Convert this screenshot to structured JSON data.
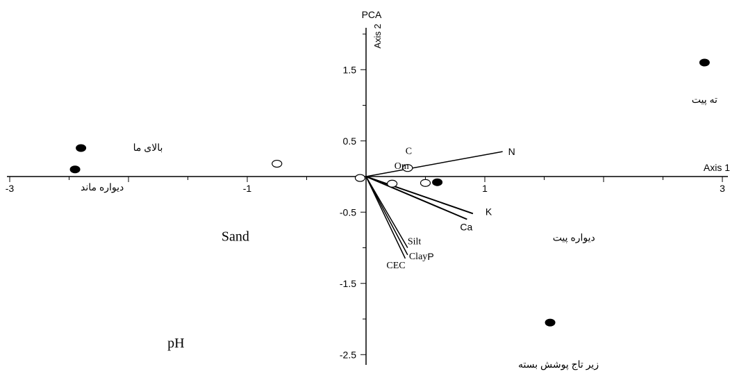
{
  "chart_data": {
    "type": "scatter",
    "title": "PCA",
    "xlabel": "Axis 1",
    "ylabel": "Axis 2",
    "xlim": [
      -3.1,
      3.1
    ],
    "ylim": [
      -2.6,
      2.1
    ],
    "x_ticks": [
      {
        "value": -3,
        "label": "-3"
      },
      {
        "value": -1,
        "label": "-1"
      },
      {
        "value": 1,
        "label": "1"
      },
      {
        "value": 3,
        "label": "3"
      }
    ],
    "y_ticks": [
      {
        "value": 1.5,
        "label": "1.5"
      },
      {
        "value": 0.5,
        "label": "0.5"
      },
      {
        "value": -0.5,
        "label": "-0.5"
      },
      {
        "value": -1.5,
        "label": "-1.5"
      },
      {
        "value": -2.5,
        "label": "-2.5"
      }
    ],
    "site_points": [
      {
        "x": 2.85,
        "y": 1.6,
        "label": "ته پیت"
      },
      {
        "x": -2.4,
        "y": 0.4,
        "label": "بالای ما"
      },
      {
        "x": -2.45,
        "y": 0.1,
        "label": "دیواره ماند"
      },
      {
        "x": 1.55,
        "y": -2.05,
        "label": "زیر تاج پوشش بسته"
      },
      {
        "x": 0.6,
        "y": -0.08,
        "label": ""
      }
    ],
    "sample_points": [
      {
        "x": -0.75,
        "y": 0.18
      },
      {
        "x": -0.05,
        "y": -0.02
      },
      {
        "x": 0.35,
        "y": 0.12
      },
      {
        "x": 0.22,
        "y": -0.1
      },
      {
        "x": 0.5,
        "y": -0.09
      }
    ],
    "vectors": [
      {
        "name": "N",
        "x": 1.15,
        "y": 0.35
      },
      {
        "name": "C",
        "x": 0.33,
        "y": 0.14
      },
      {
        "name": "Om",
        "x": 0.3,
        "y": 0.1
      },
      {
        "name": "K",
        "x": 0.9,
        "y": -0.52
      },
      {
        "name": "Ca",
        "x": 0.85,
        "y": -0.6
      },
      {
        "name": "Silt",
        "x": 0.35,
        "y": -1.0
      },
      {
        "name": "P",
        "x": 0.4,
        "y": -1.1
      },
      {
        "name": "Clay",
        "x": 0.35,
        "y": -1.1
      },
      {
        "name": "CEC",
        "x": 0.33,
        "y": -1.15
      }
    ],
    "annotations": [
      {
        "text": "Sand",
        "x": -1.1,
        "y": -0.9
      },
      {
        "text": "pH",
        "x": -1.6,
        "y": -2.4
      },
      {
        "text": "دیواره پیت",
        "x": 1.75,
        "y": -0.9
      }
    ]
  }
}
